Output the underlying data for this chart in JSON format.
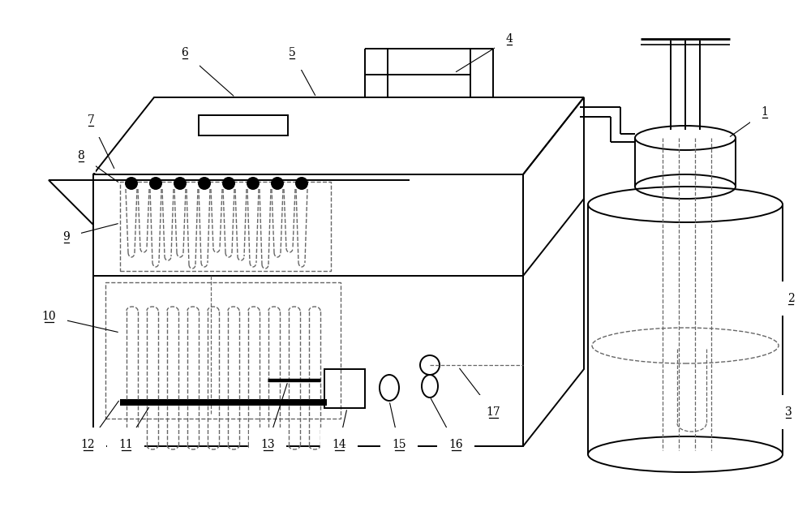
{
  "bg_color": "#ffffff",
  "line_color": "#000000",
  "dashed_color": "#666666",
  "label_color": "#000000",
  "lw_main": 1.4,
  "lw_dash": 1.0,
  "lw_thick": 2.0
}
